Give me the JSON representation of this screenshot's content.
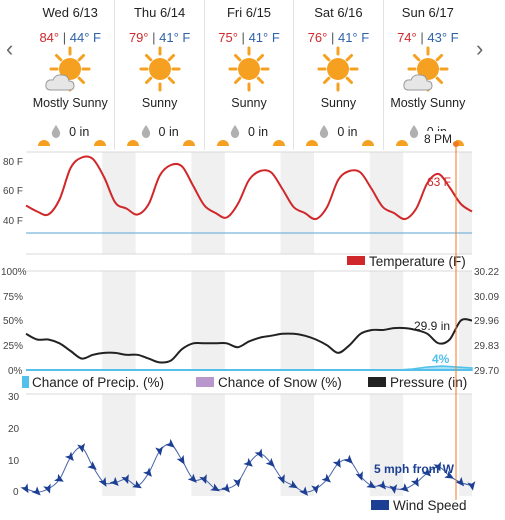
{
  "nav": {
    "prev_arrow": "‹",
    "next_arrow": "›"
  },
  "days": [
    {
      "name": "Wed 6/13",
      "hi": "84°",
      "sep": "|",
      "lo": "44° F",
      "condition": "Mostly Sunny",
      "icon": "mostly-sunny-icon",
      "precip": "0 in"
    },
    {
      "name": "Thu 6/14",
      "hi": "79°",
      "sep": "|",
      "lo": "41° F",
      "condition": "Sunny",
      "icon": "sunny-icon",
      "precip": "0 in"
    },
    {
      "name": "Fri 6/15",
      "hi": "75°",
      "sep": "|",
      "lo": "41° F",
      "condition": "Sunny",
      "icon": "sunny-icon",
      "precip": "0 in"
    },
    {
      "name": "Sat 6/16",
      "hi": "76°",
      "sep": "|",
      "lo": "41° F",
      "condition": "Sunny",
      "icon": "sunny-icon",
      "precip": "0 in"
    },
    {
      "name": "Sun 6/17",
      "hi": "74°",
      "sep": "|",
      "lo": "43° F",
      "condition": "Mostly Sunny",
      "icon": "mostly-sunny-icon",
      "precip": "0 in"
    }
  ],
  "colors": {
    "temperature": "#d0282a",
    "precip": "#52c0ea",
    "snow": "#b898cc",
    "pressure": "#222222",
    "wind": "#1c3f94",
    "cursor": "#f07a22",
    "sun": "#f5a020"
  },
  "cursor": {
    "time_label": "8 PM"
  },
  "chart_data": [
    {
      "type": "line",
      "title": "",
      "yticks": [
        "80 F",
        "60 F",
        "40 F"
      ],
      "ylim": [
        28,
        88
      ],
      "grid": true,
      "series": [
        {
          "name": "Temperature (F)",
          "x_hours": [
            0,
            3,
            6,
            9,
            12,
            15,
            18,
            21,
            24,
            27,
            30,
            33,
            36,
            39,
            42,
            45,
            48,
            51,
            54,
            57,
            60,
            63,
            66,
            69,
            72,
            75,
            78,
            81,
            84,
            87,
            90,
            93,
            96,
            99,
            102,
            105,
            108,
            111,
            114,
            117,
            120
          ],
          "values": [
            51,
            47,
            45,
            55,
            76,
            83,
            82,
            70,
            53,
            49,
            45,
            52,
            71,
            78,
            77,
            64,
            51,
            46,
            43,
            52,
            68,
            74,
            73,
            62,
            50,
            46,
            42,
            50,
            68,
            74,
            73,
            62,
            50,
            46,
            42,
            49,
            66,
            72,
            63,
            52,
            47
          ]
        }
      ],
      "annotations": [
        {
          "text": "63 F"
        }
      ]
    },
    {
      "type": "line",
      "left_ticks": [
        "100%",
        "75%",
        "50%",
        "25%",
        "0%"
      ],
      "right_ticks": [
        "30.22",
        "30.09",
        "29.96",
        "29.83",
        "29.70"
      ],
      "ylim_left": [
        0,
        100
      ],
      "ylim_right": [
        29.7,
        30.22
      ],
      "series": [
        {
          "name": "Chance of Precip. (%)",
          "x_hours": [
            0,
            100,
            104,
            108,
            112,
            116,
            120
          ],
          "values": [
            0,
            0,
            1,
            3,
            4,
            3,
            2
          ]
        },
        {
          "name": "Chance of Snow (%)",
          "x_hours": [
            0,
            120
          ],
          "values": [
            0,
            0
          ]
        },
        {
          "name": "Pressure (in)",
          "x_hours": [
            0,
            3,
            6,
            9,
            12,
            15,
            18,
            21,
            24,
            27,
            30,
            33,
            36,
            39,
            42,
            45,
            48,
            51,
            54,
            57,
            60,
            63,
            66,
            69,
            72,
            75,
            78,
            81,
            84,
            87,
            90,
            93,
            96,
            99,
            102,
            105,
            108,
            111,
            114,
            117,
            120
          ],
          "values": [
            29.89,
            29.86,
            29.86,
            29.84,
            29.8,
            29.76,
            29.78,
            29.79,
            29.79,
            29.78,
            29.78,
            29.76,
            29.74,
            29.75,
            29.81,
            29.84,
            29.84,
            29.84,
            29.84,
            29.82,
            29.85,
            29.87,
            29.88,
            29.89,
            29.89,
            29.88,
            29.86,
            29.83,
            29.79,
            29.83,
            29.89,
            29.91,
            29.91,
            29.92,
            29.92,
            29.91,
            29.89,
            29.84,
            29.86,
            29.96,
            29.96
          ]
        }
      ],
      "annotations": [
        {
          "text": "29.9 in"
        },
        {
          "text": "4%"
        }
      ]
    },
    {
      "type": "line",
      "yticks": [
        "30",
        "20",
        "10",
        "0"
      ],
      "ylim": [
        0,
        30
      ],
      "series": [
        {
          "name": "Wind Speed",
          "x_hours": [
            0,
            3,
            6,
            9,
            12,
            15,
            18,
            21,
            24,
            27,
            30,
            33,
            36,
            39,
            42,
            45,
            48,
            51,
            54,
            57,
            60,
            63,
            66,
            69,
            72,
            75,
            78,
            81,
            84,
            87,
            90,
            93,
            96,
            99,
            102,
            105,
            108,
            111,
            114,
            117,
            120
          ],
          "values": [
            1,
            0,
            1,
            4,
            11,
            14,
            8,
            3,
            3,
            4,
            2,
            6,
            13,
            15,
            10,
            4,
            4,
            1,
            1,
            3,
            9,
            12,
            9,
            4,
            2,
            0,
            1,
            4,
            9,
            10,
            5,
            2,
            2,
            1,
            1,
            3,
            6,
            8,
            5,
            3,
            2
          ]
        }
      ],
      "annotations": [
        {
          "text": "5 mph from W"
        }
      ]
    }
  ]
}
